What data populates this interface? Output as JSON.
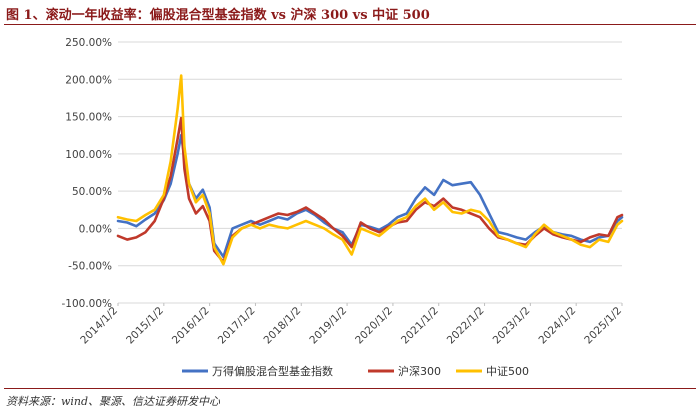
{
  "header": {
    "title": "图 1、滚动一年收益率：偏股混合型基金指数 vs 沪深 300 vs 中证 500"
  },
  "footer": {
    "source": "资料来源：wind、聚源、信达证券研发中心"
  },
  "chart_data": {
    "type": "line",
    "title": "滚动一年收益率：偏股混合型基金指数 vs 沪深 300 vs 中证 500",
    "ylim": [
      -100,
      250
    ],
    "yticks": [
      -100,
      -50,
      0,
      50,
      100,
      150,
      200,
      250
    ],
    "ytick_labels": [
      "-100.00%",
      "-50.00%",
      "0.00%",
      "50.00%",
      "100.00%",
      "150.00%",
      "200.00%",
      "250.00%"
    ],
    "xlim": [
      2014.0,
      2025.0
    ],
    "xticks": [
      2014,
      2015,
      2016,
      2017,
      2018,
      2019,
      2020,
      2021,
      2022,
      2023,
      2024,
      2025
    ],
    "xtick_labels": [
      "2014/1/2",
      "2015/1/2",
      "2016/1/2",
      "2017/1/2",
      "2018/1/2",
      "2019/1/2",
      "2020/1/2",
      "2021/1/2",
      "2022/1/2",
      "2023/1/2",
      "2024/1/2",
      "2025/1/2"
    ],
    "legend_position": "bottom",
    "series": [
      {
        "name": "万得偏股混合型基金指数",
        "color": "#4472c4",
        "x": [
          2014.0,
          2014.2,
          2014.4,
          2014.6,
          2014.8,
          2015.0,
          2015.15,
          2015.3,
          2015.38,
          2015.45,
          2015.55,
          2015.7,
          2015.85,
          2016.0,
          2016.1,
          2016.3,
          2016.5,
          2016.7,
          2016.9,
          2017.1,
          2017.3,
          2017.5,
          2017.7,
          2017.9,
          2018.1,
          2018.3,
          2018.5,
          2018.7,
          2018.9,
          2019.1,
          2019.3,
          2019.5,
          2019.7,
          2019.9,
          2020.1,
          2020.3,
          2020.5,
          2020.7,
          2020.9,
          2021.1,
          2021.3,
          2021.5,
          2021.7,
          2021.9,
          2022.1,
          2022.3,
          2022.5,
          2022.7,
          2022.9,
          2023.1,
          2023.3,
          2023.5,
          2023.7,
          2023.9,
          2024.1,
          2024.3,
          2024.5,
          2024.7,
          2024.9,
          2025.0
        ],
        "values": [
          10,
          8,
          3,
          12,
          20,
          38,
          60,
          100,
          125,
          95,
          60,
          40,
          52,
          28,
          -20,
          -38,
          0,
          5,
          10,
          5,
          10,
          15,
          12,
          20,
          25,
          18,
          8,
          0,
          -5,
          -22,
          5,
          2,
          -2,
          5,
          15,
          20,
          40,
          55,
          45,
          65,
          58,
          60,
          62,
          45,
          20,
          -5,
          -8,
          -12,
          -15,
          -5,
          3,
          -5,
          -8,
          -10,
          -15,
          -18,
          -12,
          -10,
          10,
          15
        ]
      },
      {
        "name": "沪深300",
        "color": "#c0392b",
        "x": [
          2014.0,
          2014.2,
          2014.4,
          2014.6,
          2014.8,
          2015.0,
          2015.15,
          2015.3,
          2015.38,
          2015.45,
          2015.55,
          2015.7,
          2015.85,
          2016.0,
          2016.1,
          2016.3,
          2016.5,
          2016.7,
          2016.9,
          2017.1,
          2017.3,
          2017.5,
          2017.7,
          2017.9,
          2018.1,
          2018.3,
          2018.5,
          2018.7,
          2018.9,
          2019.1,
          2019.3,
          2019.5,
          2019.7,
          2019.9,
          2020.1,
          2020.3,
          2020.5,
          2020.7,
          2020.9,
          2021.1,
          2021.3,
          2021.5,
          2021.7,
          2021.9,
          2022.1,
          2022.3,
          2022.5,
          2022.7,
          2022.9,
          2023.1,
          2023.3,
          2023.5,
          2023.7,
          2023.9,
          2024.1,
          2024.3,
          2024.5,
          2024.7,
          2024.9,
          2025.0
        ],
        "values": [
          -10,
          -15,
          -12,
          -5,
          10,
          40,
          70,
          120,
          148,
          80,
          40,
          20,
          30,
          10,
          -30,
          -45,
          -10,
          0,
          5,
          10,
          15,
          20,
          18,
          22,
          28,
          20,
          12,
          0,
          -10,
          -25,
          8,
          0,
          -5,
          2,
          8,
          10,
          25,
          35,
          30,
          40,
          28,
          25,
          20,
          15,
          0,
          -12,
          -15,
          -20,
          -22,
          -10,
          0,
          -8,
          -12,
          -15,
          -18,
          -12,
          -8,
          -10,
          15,
          18
        ]
      },
      {
        "name": "中证500",
        "color": "#ffc000",
        "x": [
          2014.0,
          2014.2,
          2014.4,
          2014.6,
          2014.8,
          2015.0,
          2015.15,
          2015.3,
          2015.38,
          2015.45,
          2015.55,
          2015.7,
          2015.85,
          2016.0,
          2016.1,
          2016.3,
          2016.5,
          2016.7,
          2016.9,
          2017.1,
          2017.3,
          2017.5,
          2017.7,
          2017.9,
          2018.1,
          2018.3,
          2018.5,
          2018.7,
          2018.9,
          2019.1,
          2019.3,
          2019.5,
          2019.7,
          2019.9,
          2020.1,
          2020.3,
          2020.5,
          2020.7,
          2020.9,
          2021.1,
          2021.3,
          2021.5,
          2021.7,
          2021.9,
          2022.1,
          2022.3,
          2022.5,
          2022.7,
          2022.9,
          2023.1,
          2023.3,
          2023.5,
          2023.7,
          2023.9,
          2024.1,
          2024.3,
          2024.5,
          2024.7,
          2024.9,
          2025.0
        ],
        "values": [
          15,
          12,
          10,
          18,
          25,
          45,
          90,
          160,
          205,
          110,
          60,
          35,
          45,
          20,
          -25,
          -48,
          -12,
          0,
          5,
          0,
          5,
          2,
          0,
          5,
          10,
          5,
          0,
          -8,
          -15,
          -35,
          0,
          -5,
          -10,
          0,
          10,
          15,
          30,
          40,
          25,
          35,
          22,
          20,
          25,
          22,
          10,
          -10,
          -15,
          -20,
          -25,
          -8,
          5,
          -5,
          -10,
          -15,
          -22,
          -25,
          -15,
          -18,
          5,
          10
        ]
      }
    ]
  }
}
